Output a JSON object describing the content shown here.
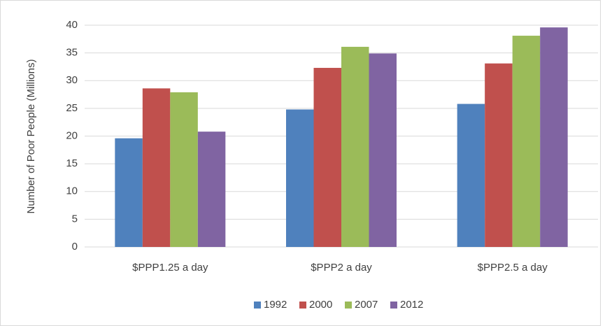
{
  "chart_data": {
    "type": "bar",
    "y_label": "Number of Poor People (Millions)",
    "categories": [
      "$PPP1.25 a day",
      "$PPP2 a day",
      "$PPP2.5 a day"
    ],
    "series": [
      {
        "name": "1992",
        "color": "#4f81bd",
        "values": [
          19.6,
          24.8,
          25.8
        ]
      },
      {
        "name": "2000",
        "color": "#c0504d",
        "values": [
          28.6,
          32.3,
          33.1
        ]
      },
      {
        "name": "2007",
        "color": "#9bbb59",
        "values": [
          27.9,
          36.1,
          38.1
        ]
      },
      {
        "name": "2012",
        "color": "#8064a2",
        "values": [
          20.8,
          34.9,
          39.6
        ]
      }
    ],
    "ylim": [
      0,
      40
    ],
    "yticks": [
      0,
      5,
      10,
      15,
      20,
      25,
      30,
      35,
      40
    ],
    "grid": true,
    "legend": "bottom"
  }
}
